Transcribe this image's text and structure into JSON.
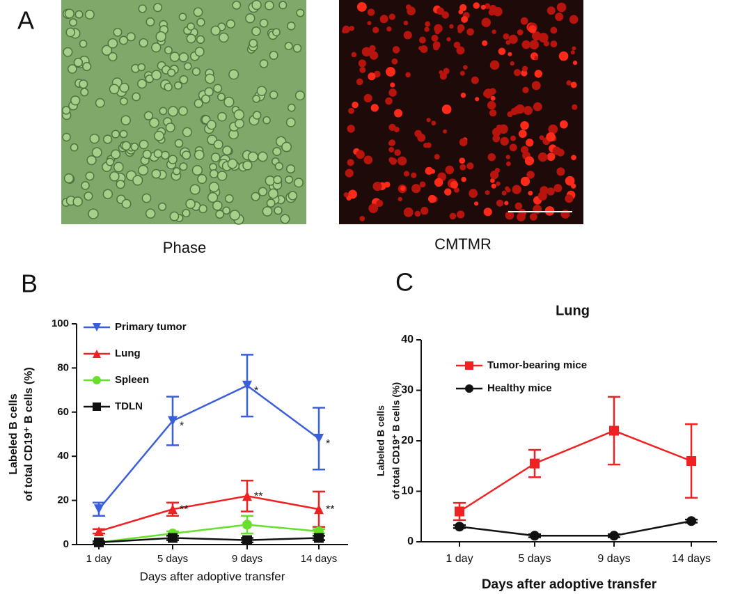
{
  "panel_a": {
    "label": "A",
    "images": [
      {
        "caption": "Phase"
      },
      {
        "caption": "CMTMR"
      }
    ]
  },
  "chart_data": [
    {
      "type": "line",
      "panel_label": "B",
      "x_label": "Days after adoptive transfer",
      "y_label": [
        "Labeled B cells",
        "of total CD19⁺ B cells (%)"
      ],
      "categories": [
        "1 day",
        "5 days",
        "9 days",
        "14 days"
      ],
      "ylim": [
        0,
        100
      ],
      "yticks": [
        0,
        20,
        40,
        60,
        80,
        100
      ],
      "series": [
        {
          "name": "Primary tumor",
          "color": "#3b5fd9",
          "marker": "triangle-down",
          "values": [
            16,
            56,
            72,
            48
          ],
          "errors": [
            3,
            11,
            14,
            14
          ],
          "annotations": [
            null,
            "*",
            "*",
            "*"
          ]
        },
        {
          "name": "Lung",
          "color": "#ee2222",
          "marker": "triangle-up",
          "values": [
            6,
            16,
            22,
            16
          ],
          "errors": [
            1,
            3,
            7,
            8
          ],
          "annotations": [
            null,
            "**",
            "**",
            "**"
          ]
        },
        {
          "name": "Spleen",
          "color": "#66e02a",
          "marker": "circle",
          "values": [
            1,
            5,
            9,
            6
          ],
          "errors": [
            0.5,
            1,
            4,
            1
          ]
        },
        {
          "name": "TDLN",
          "color": "#111111",
          "marker": "square",
          "values": [
            1,
            3,
            2,
            3
          ],
          "errors": [
            0.5,
            1,
            1,
            1
          ]
        }
      ]
    },
    {
      "type": "line",
      "panel_label": "C",
      "title": "Lung",
      "x_label": "Days after adoptive transfer",
      "y_label": [
        "Labeled B cells",
        "of total CD19⁺ B cells (%)"
      ],
      "categories": [
        "1 day",
        "5 days",
        "9 days",
        "14 days"
      ],
      "ylim": [
        0,
        40
      ],
      "yticks": [
        0,
        10,
        20,
        30,
        40
      ],
      "series": [
        {
          "name": "Tumor-bearing mice",
          "color": "#ee2222",
          "marker": "square",
          "values": [
            6,
            15.5,
            22,
            16
          ],
          "errors": [
            1.7,
            2.7,
            6.7,
            7.3
          ]
        },
        {
          "name": "Healthy mice",
          "color": "#111111",
          "marker": "circle",
          "values": [
            3,
            1.2,
            1.2,
            4.1
          ],
          "errors": [
            0.3,
            0.3,
            0.3,
            0.3
          ]
        }
      ]
    }
  ]
}
